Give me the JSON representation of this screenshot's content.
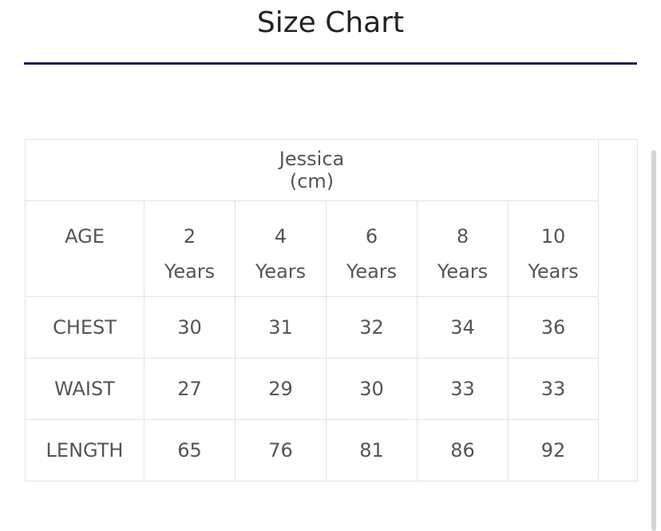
{
  "header": {
    "title": "Size Chart"
  },
  "table": {
    "caption": "Jessica (cm)",
    "columns": [
      "AGE",
      "2 Years",
      "4 Years",
      "6 Years",
      "8 Years",
      "10 Years"
    ],
    "rows": [
      [
        "CHEST",
        30,
        31,
        32,
        34,
        36
      ],
      [
        "WAIST",
        27,
        29,
        30,
        33,
        33
      ],
      [
        "LENGTH",
        65,
        76,
        81,
        86,
        92
      ]
    ]
  }
}
